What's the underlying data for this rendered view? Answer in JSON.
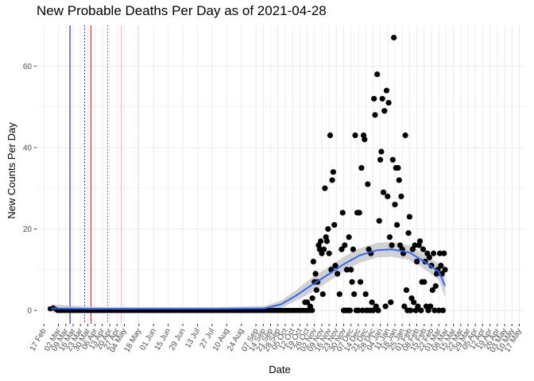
{
  "chart_data": {
    "type": "scatter",
    "title": "New Probable Deaths Per Day as of 2021-04-28",
    "xlabel": "Date",
    "ylabel": "New Counts Per Day",
    "xlim": [
      "2020-02-10",
      "2021-05-22"
    ],
    "ylim": [
      -3.3,
      70
    ],
    "y_ticks": [
      0,
      20,
      40,
      60
    ],
    "grid": true,
    "legend": "none",
    "colors": {
      "points": "#000000",
      "smooth_line": "#3366ff",
      "smooth_band": "#bfbfbf",
      "grid": "#ebebeb",
      "vline_blue": "#00008b",
      "vline_red": "#b22222",
      "vline_pink": "#ffb6c1"
    },
    "x_ticks": [
      {
        "date": "2020-02-17",
        "label": "17 Feb"
      },
      {
        "date": "2020-03-02",
        "label": "02 Mar"
      },
      {
        "date": "2020-03-09",
        "label": "09 Mar"
      },
      {
        "date": "2020-03-16",
        "label": "16 Mar"
      },
      {
        "date": "2020-03-23",
        "label": "23 Mar"
      },
      {
        "date": "2020-03-30",
        "label": "30 Mar"
      },
      {
        "date": "2020-04-06",
        "label": "06 Apr"
      },
      {
        "date": "2020-04-13",
        "label": "13 Apr"
      },
      {
        "date": "2020-04-20",
        "label": "20 Apr"
      },
      {
        "date": "2020-04-27",
        "label": "27 Apr"
      },
      {
        "date": "2020-05-04",
        "label": "04 May"
      },
      {
        "date": "2020-05-18",
        "label": "18 May"
      },
      {
        "date": "2020-06-01",
        "label": "01 Jun"
      },
      {
        "date": "2020-06-15",
        "label": "15 Jun"
      },
      {
        "date": "2020-06-29",
        "label": "29 Jun"
      },
      {
        "date": "2020-07-13",
        "label": "13 Jul"
      },
      {
        "date": "2020-07-27",
        "label": "27 Jul"
      },
      {
        "date": "2020-08-10",
        "label": "10 Aug"
      },
      {
        "date": "2020-08-24",
        "label": "24 Aug"
      },
      {
        "date": "2020-09-07",
        "label": "07 Sep"
      },
      {
        "date": "2020-09-14",
        "label": "14 Sep"
      },
      {
        "date": "2020-09-21",
        "label": "21 Sep"
      },
      {
        "date": "2020-09-28",
        "label": "28 Sep"
      },
      {
        "date": "2020-10-05",
        "label": "05 Oct"
      },
      {
        "date": "2020-10-12",
        "label": "12 Oct"
      },
      {
        "date": "2020-10-19",
        "label": "19 Oct"
      },
      {
        "date": "2020-10-26",
        "label": "26 Oct"
      },
      {
        "date": "2020-11-02",
        "label": "02 Nov"
      },
      {
        "date": "2020-11-09",
        "label": "09 Nov"
      },
      {
        "date": "2020-11-16",
        "label": "16 Nov"
      },
      {
        "date": "2020-11-23",
        "label": "23 Nov"
      },
      {
        "date": "2020-11-30",
        "label": "30 Nov"
      },
      {
        "date": "2020-12-07",
        "label": "07 Dec"
      },
      {
        "date": "2020-12-14",
        "label": "14 Dec"
      },
      {
        "date": "2020-12-21",
        "label": "21 Dec"
      },
      {
        "date": "2020-12-28",
        "label": "28 Dec"
      },
      {
        "date": "2021-01-04",
        "label": "04 Jan"
      },
      {
        "date": "2021-01-11",
        "label": "11 Jan"
      },
      {
        "date": "2021-01-18",
        "label": "18 Jan"
      },
      {
        "date": "2021-01-25",
        "label": "25 Jan"
      },
      {
        "date": "2021-02-01",
        "label": "01 Feb"
      },
      {
        "date": "2021-02-08",
        "label": "08 Feb"
      },
      {
        "date": "2021-02-15",
        "label": "15 Feb"
      },
      {
        "date": "2021-02-22",
        "label": "22 Feb"
      },
      {
        "date": "2021-03-01",
        "label": "01 Mar"
      },
      {
        "date": "2021-03-08",
        "label": "08 Mar"
      },
      {
        "date": "2021-03-15",
        "label": "15 Mar"
      },
      {
        "date": "2021-03-22",
        "label": "22 Mar"
      },
      {
        "date": "2021-03-29",
        "label": "29 Mar"
      },
      {
        "date": "2021-04-05",
        "label": "05 Apr"
      },
      {
        "date": "2021-04-12",
        "label": "12 Apr"
      },
      {
        "date": "2021-04-19",
        "label": "19 Apr"
      },
      {
        "date": "2021-04-26",
        "label": "26 Apr"
      },
      {
        "date": "2021-05-03",
        "label": "03 May"
      },
      {
        "date": "2021-05-10",
        "label": "10 May"
      },
      {
        "date": "2021-05-17",
        "label": "17 May"
      }
    ],
    "vlines": [
      {
        "date": "2020-03-13",
        "color": "#00008b",
        "style": "solid"
      },
      {
        "date": "2020-03-27",
        "color": "#00008b",
        "style": "dotted"
      },
      {
        "date": "2020-04-02",
        "color": "#b22222",
        "style": "solid"
      },
      {
        "date": "2020-04-18",
        "color": "#b22222",
        "style": "dotted"
      },
      {
        "date": "2020-05-01",
        "color": "#ffb6c1",
        "style": "solid"
      },
      {
        "date": "2020-05-17",
        "color": "#ffb6c1",
        "style": "dotted"
      }
    ],
    "zero_range": [
      "2020-03-01",
      "2020-10-31"
    ],
    "zero_range_extra": [
      {
        "date": "2020-02-23",
        "y": 0.4
      },
      {
        "date": "2020-02-26",
        "y": 0.6
      },
      {
        "date": "2020-02-29",
        "y": 0.2
      }
    ],
    "points": [
      {
        "date": "2020-10-24",
        "y": 2
      },
      {
        "date": "2020-10-26",
        "y": 2
      },
      {
        "date": "2020-10-29",
        "y": 1
      },
      {
        "date": "2020-10-31",
        "y": 3
      },
      {
        "date": "2020-11-01",
        "y": 12
      },
      {
        "date": "2020-11-02",
        "y": 7
      },
      {
        "date": "2020-11-03",
        "y": 9
      },
      {
        "date": "2020-11-04",
        "y": 5
      },
      {
        "date": "2020-11-05",
        "y": 7
      },
      {
        "date": "2020-11-06",
        "y": 16
      },
      {
        "date": "2020-11-07",
        "y": 15
      },
      {
        "date": "2020-11-08",
        "y": 17
      },
      {
        "date": "2020-11-09",
        "y": 14
      },
      {
        "date": "2020-11-10",
        "y": 4
      },
      {
        "date": "2020-11-11",
        "y": 15
      },
      {
        "date": "2020-11-12",
        "y": 30
      },
      {
        "date": "2020-11-13",
        "y": 18
      },
      {
        "date": "2020-11-14",
        "y": 17
      },
      {
        "date": "2020-11-15",
        "y": 20
      },
      {
        "date": "2020-11-16",
        "y": 14
      },
      {
        "date": "2020-11-17",
        "y": 43
      },
      {
        "date": "2020-11-18",
        "y": 10
      },
      {
        "date": "2020-11-19",
        "y": 32
      },
      {
        "date": "2020-11-20",
        "y": 34
      },
      {
        "date": "2020-11-21",
        "y": 21
      },
      {
        "date": "2020-11-22",
        "y": 11
      },
      {
        "date": "2020-11-24",
        "y": 9
      },
      {
        "date": "2020-11-26",
        "y": 4
      },
      {
        "date": "2020-11-28",
        "y": 15
      },
      {
        "date": "2020-11-29",
        "y": 24
      },
      {
        "date": "2020-11-30",
        "y": 0
      },
      {
        "date": "2020-12-01",
        "y": 16
      },
      {
        "date": "2020-12-02",
        "y": 0
      },
      {
        "date": "2020-12-03",
        "y": 10
      },
      {
        "date": "2020-12-04",
        "y": 0
      },
      {
        "date": "2020-12-05",
        "y": 18
      },
      {
        "date": "2020-12-06",
        "y": 0
      },
      {
        "date": "2020-12-07",
        "y": 10
      },
      {
        "date": "2020-12-08",
        "y": 7
      },
      {
        "date": "2020-12-09",
        "y": 15
      },
      {
        "date": "2020-12-10",
        "y": 4
      },
      {
        "date": "2020-12-11",
        "y": 43
      },
      {
        "date": "2020-12-12",
        "y": 0
      },
      {
        "date": "2020-12-13",
        "y": 24
      },
      {
        "date": "2020-12-14",
        "y": 0
      },
      {
        "date": "2020-12-15",
        "y": 24
      },
      {
        "date": "2020-12-16",
        "y": 7
      },
      {
        "date": "2020-12-17",
        "y": 35
      },
      {
        "date": "2020-12-18",
        "y": 0
      },
      {
        "date": "2020-12-19",
        "y": 43
      },
      {
        "date": "2020-12-20",
        "y": 42
      },
      {
        "date": "2020-12-21",
        "y": 4
      },
      {
        "date": "2020-12-22",
        "y": 0
      },
      {
        "date": "2020-12-23",
        "y": 31
      },
      {
        "date": "2020-12-24",
        "y": 15
      },
      {
        "date": "2020-12-25",
        "y": 0
      },
      {
        "date": "2020-12-26",
        "y": 14
      },
      {
        "date": "2020-12-27",
        "y": 2
      },
      {
        "date": "2020-12-28",
        "y": 0
      },
      {
        "date": "2020-12-29",
        "y": 52
      },
      {
        "date": "2020-12-30",
        "y": 48
      },
      {
        "date": "2020-12-31",
        "y": 1
      },
      {
        "date": "2021-01-01",
        "y": 58
      },
      {
        "date": "2021-01-02",
        "y": 0
      },
      {
        "date": "2021-01-03",
        "y": 22
      },
      {
        "date": "2021-01-04",
        "y": 37
      },
      {
        "date": "2021-01-05",
        "y": 39
      },
      {
        "date": "2021-01-06",
        "y": 52
      },
      {
        "date": "2021-01-07",
        "y": 29
      },
      {
        "date": "2021-01-08",
        "y": 49
      },
      {
        "date": "2021-01-09",
        "y": 1
      },
      {
        "date": "2021-01-10",
        "y": 54
      },
      {
        "date": "2021-01-11",
        "y": 28
      },
      {
        "date": "2021-01-12",
        "y": 51
      },
      {
        "date": "2021-01-13",
        "y": 18
      },
      {
        "date": "2021-01-14",
        "y": 2
      },
      {
        "date": "2021-01-15",
        "y": 16
      },
      {
        "date": "2021-01-16",
        "y": 37
      },
      {
        "date": "2021-01-17",
        "y": 67
      },
      {
        "date": "2021-01-18",
        "y": 26
      },
      {
        "date": "2021-01-19",
        "y": 35
      },
      {
        "date": "2021-01-20",
        "y": 21
      },
      {
        "date": "2021-01-21",
        "y": 35
      },
      {
        "date": "2021-01-22",
        "y": 32
      },
      {
        "date": "2021-01-23",
        "y": 16
      },
      {
        "date": "2021-01-24",
        "y": 28
      },
      {
        "date": "2021-01-25",
        "y": 15
      },
      {
        "date": "2021-01-26",
        "y": 14
      },
      {
        "date": "2021-01-27",
        "y": 1
      },
      {
        "date": "2021-01-28",
        "y": 43
      },
      {
        "date": "2021-01-29",
        "y": 5
      },
      {
        "date": "2021-01-30",
        "y": 0
      },
      {
        "date": "2021-01-31",
        "y": 19
      },
      {
        "date": "2021-02-01",
        "y": 23
      },
      {
        "date": "2021-02-02",
        "y": 0
      },
      {
        "date": "2021-02-03",
        "y": 3
      },
      {
        "date": "2021-02-04",
        "y": 15
      },
      {
        "date": "2021-02-05",
        "y": 2
      },
      {
        "date": "2021-02-06",
        "y": 16
      },
      {
        "date": "2021-02-07",
        "y": 0
      },
      {
        "date": "2021-02-08",
        "y": 12
      },
      {
        "date": "2021-02-09",
        "y": 1
      },
      {
        "date": "2021-02-10",
        "y": 16
      },
      {
        "date": "2021-02-11",
        "y": 17
      },
      {
        "date": "2021-02-12",
        "y": 0
      },
      {
        "date": "2021-02-13",
        "y": 7
      },
      {
        "date": "2021-02-14",
        "y": 15
      },
      {
        "date": "2021-02-15",
        "y": 7
      },
      {
        "date": "2021-02-16",
        "y": 12
      },
      {
        "date": "2021-02-17",
        "y": 1
      },
      {
        "date": "2021-02-18",
        "y": 14
      },
      {
        "date": "2021-02-19",
        "y": 0
      },
      {
        "date": "2021-02-20",
        "y": 13
      },
      {
        "date": "2021-02-21",
        "y": 1
      },
      {
        "date": "2021-02-22",
        "y": 11
      },
      {
        "date": "2021-02-23",
        "y": 5
      },
      {
        "date": "2021-02-24",
        "y": 14
      },
      {
        "date": "2021-02-25",
        "y": 0
      },
      {
        "date": "2021-02-26",
        "y": 6
      },
      {
        "date": "2021-02-27",
        "y": 9
      },
      {
        "date": "2021-02-28",
        "y": 10
      },
      {
        "date": "2021-03-01",
        "y": 0
      },
      {
        "date": "2021-03-02",
        "y": 14
      },
      {
        "date": "2021-03-03",
        "y": 11
      },
      {
        "date": "2021-03-04",
        "y": 9
      },
      {
        "date": "2021-03-05",
        "y": 0
      },
      {
        "date": "2021-03-06",
        "y": 14
      },
      {
        "date": "2021-03-07",
        "y": 10
      }
    ],
    "smooth": {
      "points": [
        {
          "date": "2020-02-24",
          "y": 0.5
        },
        {
          "date": "2020-04-01",
          "y": 0.4
        },
        {
          "date": "2020-06-01",
          "y": 0.4
        },
        {
          "date": "2020-08-01",
          "y": 0.4
        },
        {
          "date": "2020-09-15",
          "y": 0.5
        },
        {
          "date": "2020-10-01",
          "y": 1.5
        },
        {
          "date": "2020-10-15",
          "y": 3.6
        },
        {
          "date": "2020-11-01",
          "y": 6.5
        },
        {
          "date": "2020-11-15",
          "y": 8.8
        },
        {
          "date": "2020-12-01",
          "y": 11.5
        },
        {
          "date": "2020-12-15",
          "y": 13.5
        },
        {
          "date": "2021-01-01",
          "y": 14.8
        },
        {
          "date": "2021-01-15",
          "y": 15.0
        },
        {
          "date": "2021-02-01",
          "y": 14.2
        },
        {
          "date": "2021-02-15",
          "y": 12.0
        },
        {
          "date": "2021-03-01",
          "y": 9.5
        },
        {
          "date": "2021-03-07",
          "y": 6.0
        }
      ],
      "band_half_width": [
        1.0,
        0.5,
        0.4,
        0.4,
        0.6,
        0.9,
        1.3,
        1.8,
        1.8,
        1.8,
        1.8,
        1.8,
        1.8,
        1.8,
        1.8,
        2.0,
        2.8
      ]
    }
  }
}
